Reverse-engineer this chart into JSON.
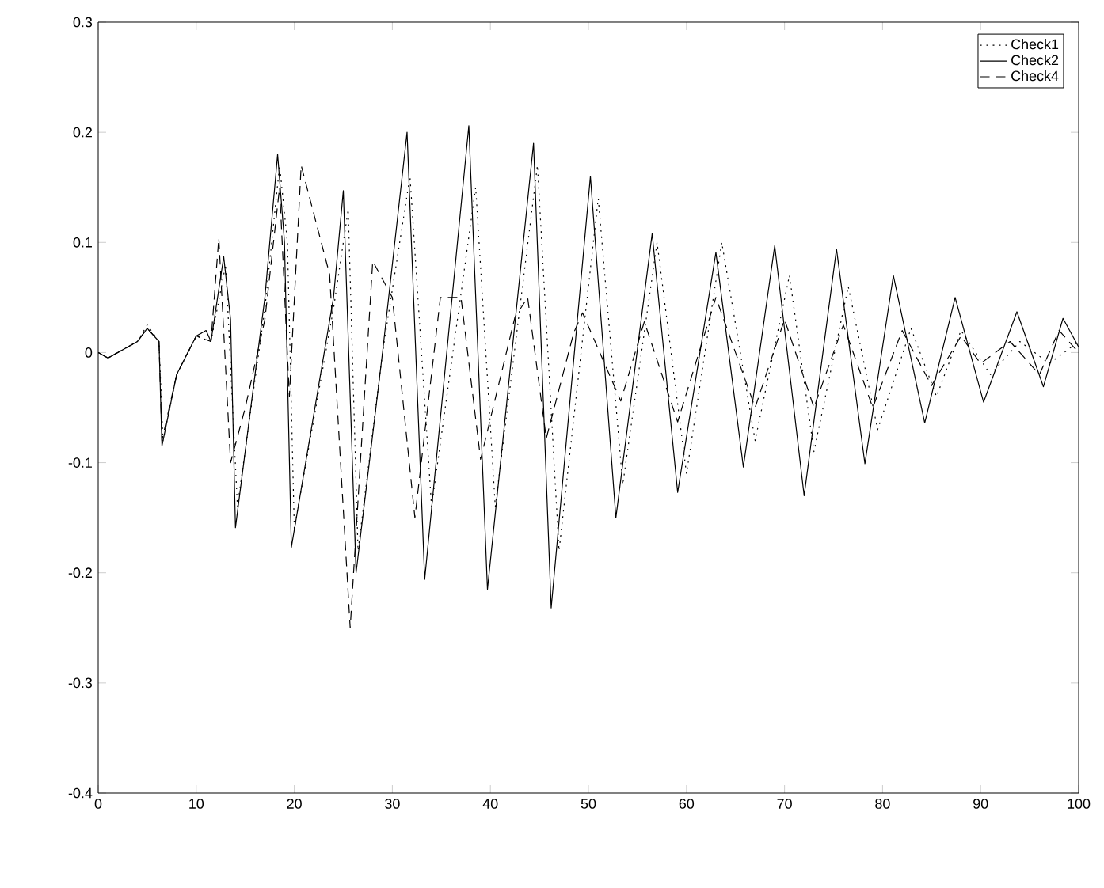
{
  "chart_data": {
    "type": "line",
    "xlim": [
      0,
      100
    ],
    "ylim": [
      -0.4,
      0.3
    ],
    "xticks": [
      0,
      10,
      20,
      30,
      40,
      50,
      60,
      70,
      80,
      90,
      100
    ],
    "yticks": [
      -0.4,
      -0.3,
      -0.2,
      -0.1,
      0,
      0.1,
      0.2,
      0.3
    ],
    "grid": false,
    "legend": "top right",
    "marker": "none",
    "series": [
      {
        "name": "Check1",
        "color": "#000000",
        "line_style": "dotted",
        "x": [
          0,
          1,
          4,
          5,
          6.2,
          6.6,
          8,
          10,
          11.5,
          13,
          14.2,
          17,
          18.5,
          19.3,
          20,
          24,
          25.5,
          26.5,
          29,
          31.8,
          34,
          38.5,
          40.5,
          44.8,
          47,
          51,
          53.5,
          57,
          60,
          63.6,
          67,
          70.5,
          73,
          76.5,
          79.5,
          82.9,
          85.5,
          88,
          91,
          94,
          97,
          100
        ],
        "values": [
          0,
          -0.005,
          0.01,
          0.025,
          0.01,
          -0.08,
          -0.02,
          0.015,
          0.01,
          0.08,
          -0.14,
          0.04,
          0.17,
          0.1,
          -0.16,
          0.04,
          0.13,
          -0.18,
          0,
          0.16,
          -0.14,
          0.15,
          -0.14,
          0.17,
          -0.18,
          0.14,
          -0.12,
          0.1,
          -0.11,
          0.1,
          -0.08,
          0.07,
          -0.09,
          0.06,
          -0.07,
          0.022,
          -0.04,
          0.02,
          -0.02,
          0.01,
          -0.01,
          0.01
        ]
      },
      {
        "name": "Check2",
        "color": "#000000",
        "line_style": "solid",
        "x": [
          0,
          1,
          4,
          5,
          6.2,
          6.5,
          8,
          10,
          11,
          11.5,
          12.8,
          13.5,
          14,
          17,
          18.3,
          19,
          19.7,
          24,
          25,
          26.3,
          29,
          31.5,
          33.3,
          37.8,
          39.7,
          44.4,
          46.2,
          50.2,
          52.8,
          56.5,
          59.1,
          63,
          65.8,
          69,
          72,
          75.3,
          78.2,
          81.1,
          84.3,
          87.4,
          90.3,
          93.7,
          96.4,
          98.4,
          100
        ],
        "values": [
          0,
          -0.005,
          0.01,
          0.022,
          0.01,
          -0.085,
          -0.02,
          0.015,
          0.02,
          0.01,
          0.087,
          0.03,
          -0.159,
          0.05,
          0.18,
          0.1,
          -0.177,
          0.05,
          0.147,
          -0.2,
          0,
          0.2,
          -0.206,
          0.206,
          -0.215,
          0.19,
          -0.232,
          0.16,
          -0.15,
          0.108,
          -0.127,
          0.091,
          -0.104,
          0.097,
          -0.13,
          0.094,
          -0.101,
          0.07,
          -0.064,
          0.05,
          -0.045,
          0.037,
          -0.031,
          0.031,
          0.005
        ]
      },
      {
        "name": "Check4",
        "color": "#000000",
        "line_style": "dashed",
        "x": [
          0,
          1,
          4,
          5,
          6.2,
          6.5,
          8,
          10,
          11.5,
          12.3,
          13.5,
          15,
          17,
          18.5,
          19.5,
          20.7,
          23.6,
          25.7,
          28,
          30,
          32.3,
          34.9,
          37,
          39,
          42.5,
          43.8,
          45.7,
          48.5,
          49.4,
          53.3,
          55.7,
          59.1,
          63,
          67,
          70,
          73,
          76,
          79,
          82,
          85,
          88,
          90,
          93,
          96,
          98,
          100
        ],
        "values": [
          0,
          -0.005,
          0.01,
          0.022,
          0.01,
          -0.08,
          -0.02,
          0.015,
          0.01,
          0.104,
          -0.1,
          -0.05,
          0.03,
          0.15,
          -0.04,
          0.17,
          0.071,
          -0.25,
          0.083,
          0.05,
          -0.15,
          0.05,
          0.05,
          -0.097,
          0.032,
          0.05,
          -0.078,
          0.018,
          0.036,
          -0.044,
          0.028,
          -0.063,
          0.05,
          -0.05,
          0.03,
          -0.05,
          0.025,
          -0.05,
          0.02,
          -0.03,
          0.015,
          -0.01,
          0.01,
          -0.02,
          0.02,
          0
        ]
      }
    ]
  }
}
